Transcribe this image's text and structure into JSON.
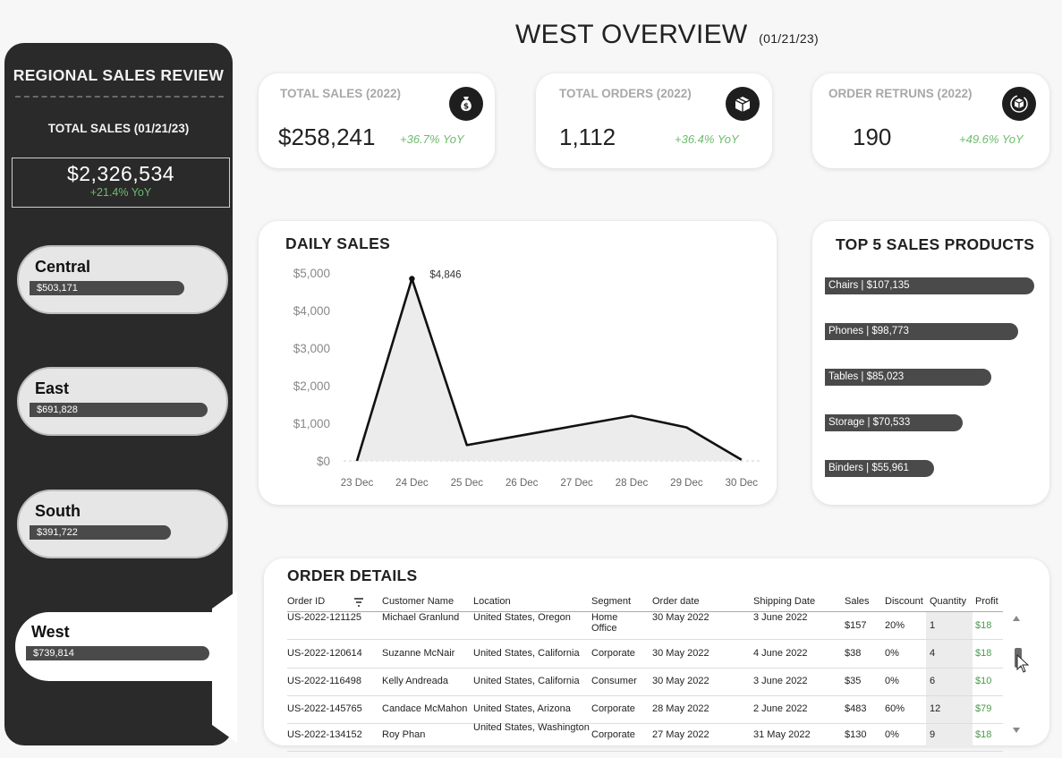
{
  "sidebar": {
    "title": "REGIONAL SALES REVIEW",
    "subtitle": "TOTAL SALES (01/21/23)",
    "total_value": "$2,326,534",
    "total_yoy": "+21.4% YoY",
    "regions": [
      {
        "name": "Central",
        "value": "$503,171",
        "sales": 503171
      },
      {
        "name": "East",
        "value": "$691,828",
        "sales": 691828
      },
      {
        "name": "South",
        "value": "$391,722",
        "sales": 391722
      },
      {
        "name": "West",
        "value": "$739,814",
        "sales": 739814
      }
    ]
  },
  "header": {
    "title": "WEST OVERVIEW",
    "date": "(01/21/23)"
  },
  "kpis": [
    {
      "label": "TOTAL SALES (2022)",
      "value": "$258,241",
      "yoy": "+36.7% YoY",
      "icon": "money-bag-icon"
    },
    {
      "label": "TOTAL ORDERS (2022)",
      "value": "1,112",
      "yoy": "+36.4% YoY",
      "icon": "box-icon"
    },
    {
      "label": "ORDER RETRUNS (2022)",
      "value": "190",
      "yoy": "+49.6% YoY",
      "icon": "return-box-icon"
    }
  ],
  "chart_data": {
    "type": "line",
    "title": "DAILY SALES",
    "categories": [
      "23 Dec",
      "24 Dec",
      "25 Dec",
      "26 Dec",
      "27 Dec",
      "28 Dec",
      "29 Dec",
      "30 Dec"
    ],
    "values": [
      0,
      4846,
      420,
      680,
      940,
      1200,
      890,
      30
    ],
    "y_ticks": [
      "$0",
      "$1,000",
      "$2,000",
      "$3,000",
      "$4,000",
      "$5,000"
    ],
    "ylim": [
      0,
      5000
    ],
    "peak_label": "$4,846",
    "xlabel": "",
    "ylabel": ""
  },
  "top_products": {
    "title": "TOP 5 SALES PRODUCTS",
    "items": [
      {
        "label": "Chairs  |  $107,135",
        "value": 107135
      },
      {
        "label": "Phones  |  $98,773",
        "value": 98773
      },
      {
        "label": "Tables  |  $85,023",
        "value": 85023
      },
      {
        "label": "Storage  |  $70,533",
        "value": 70533
      },
      {
        "label": "Binders  |  $55,961",
        "value": 55961
      }
    ]
  },
  "orders": {
    "title": "ORDER DETAILS",
    "columns": [
      "Order ID",
      "Customer Name",
      "Location",
      "Segment",
      "Order date",
      "Shipping Date",
      "Sales",
      "Discount",
      "Quantity",
      "Profit"
    ],
    "rows": [
      [
        "US-2022-121125",
        "Michael Granlund",
        "United States, Oregon",
        "Home Office",
        "30 May 2022",
        "3 June 2022",
        "$157",
        "20%",
        "1",
        "$18"
      ],
      [
        "US-2022-120614",
        "Suzanne McNair",
        "United States, California",
        "Corporate",
        "30 May 2022",
        "4 June 2022",
        "$38",
        "0%",
        "4",
        "$18"
      ],
      [
        "US-2022-116498",
        "Kelly Andreada",
        "United States, California",
        "Consumer",
        "30 May 2022",
        "3 June 2022",
        "$35",
        "0%",
        "6",
        "$10"
      ],
      [
        "US-2022-145765",
        "Candace McMahon",
        "United States, Arizona",
        "Corporate",
        "28 May 2022",
        "2 June 2022",
        "$483",
        "60%",
        "12",
        "$79"
      ],
      [
        "US-2022-134152",
        "Roy Phan",
        "United States, Washington",
        "Corporate",
        "27 May 2022",
        "31 May 2022",
        "$130",
        "0%",
        "9",
        "$18"
      ]
    ]
  }
}
